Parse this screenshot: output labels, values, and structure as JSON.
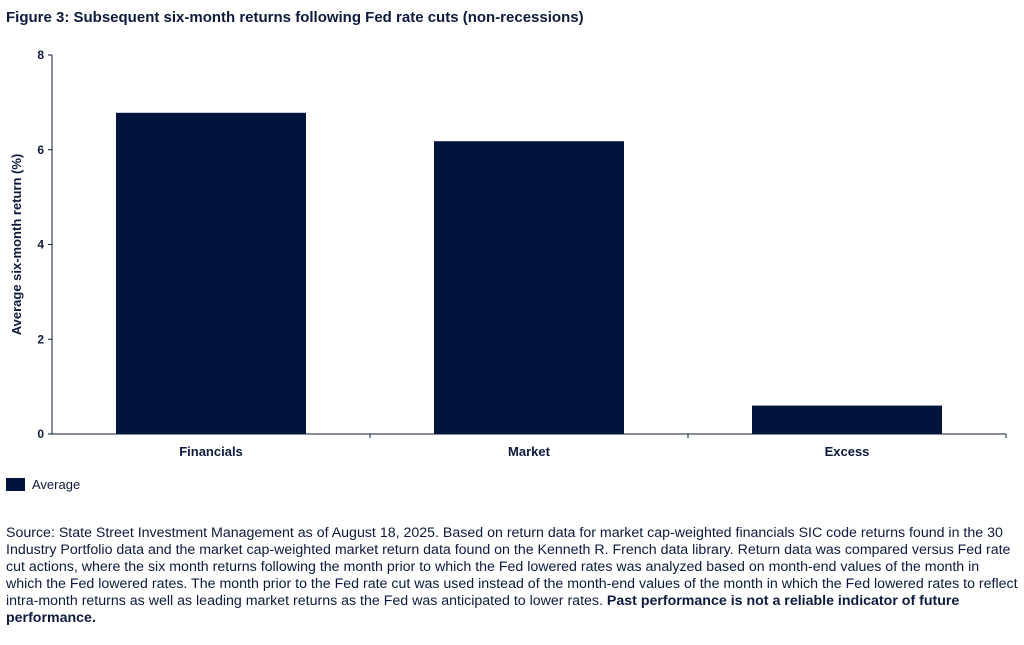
{
  "figure_title": "Figure 3: Subsequent six-month returns following Fed rate cuts (non-recessions)",
  "colors": {
    "bar": "#00143c",
    "axis": "#0d1a3c",
    "text": "#0d1a3c"
  },
  "chart_data": {
    "type": "bar",
    "title": "Figure 3: Subsequent six-month returns following Fed rate cuts (non-recessions)",
    "categories": [
      "Financials",
      "Market",
      "Excess"
    ],
    "series": [
      {
        "name": "Average",
        "values": [
          6.78,
          6.18,
          0.6
        ]
      }
    ],
    "xlabel": "",
    "ylabel": "Average six-month return (%)",
    "ylim": [
      0,
      8
    ],
    "yticks": [
      0,
      2,
      4,
      6,
      8
    ],
    "grid": false,
    "legend": "bottom-left"
  },
  "legend": {
    "label": "Average"
  },
  "source": {
    "text": "Source: State Street Investment Management as of August 18, 2025. Based on return data for market cap-weighted financials SIC code returns found in the 30 Industry Portfolio data and the market cap-weighted market return data found on the Kenneth R. French data library. Return data was compared versus Fed rate cut actions, where the six month returns following the month prior to which the Fed lowered rates was analyzed based on month-end values of the month in which the Fed lowered rates. The month prior to the Fed rate cut was used instead of the month-end values of the month in which the Fed lowered rates to reflect intra-month returns as well as leading market returns as the Fed was anticipated to lower rates.",
    "disclaimer": "Past performance is not a reliable indicator of future performance."
  }
}
